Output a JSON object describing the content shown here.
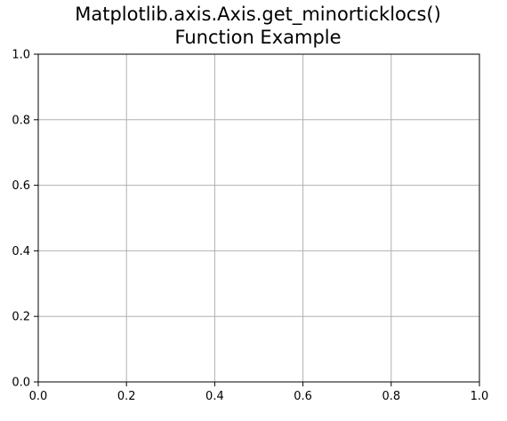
{
  "chart_data": {
    "type": "line",
    "title_lines": [
      "Matplotlib.axis.Axis.get_minorticklocs()",
      "Function Example"
    ],
    "xlabel": "",
    "ylabel": "",
    "xlim": [
      0.0,
      1.0
    ],
    "ylim": [
      0.0,
      1.0
    ],
    "xticks": [
      0.0,
      0.2,
      0.4,
      0.6,
      0.8,
      1.0
    ],
    "xtick_labels": [
      "0.0",
      "0.2",
      "0.4",
      "0.6",
      "0.8",
      "1.0"
    ],
    "yticks": [
      0.0,
      0.2,
      0.4,
      0.6,
      0.8,
      1.0
    ],
    "ytick_labels": [
      "0.0",
      "0.2",
      "0.4",
      "0.6",
      "0.8",
      "1.0"
    ],
    "grid": true,
    "series": []
  },
  "colors": {
    "grid": "#b0b0b0",
    "axes": "#000000",
    "text": "#000000",
    "background": "#ffffff"
  }
}
